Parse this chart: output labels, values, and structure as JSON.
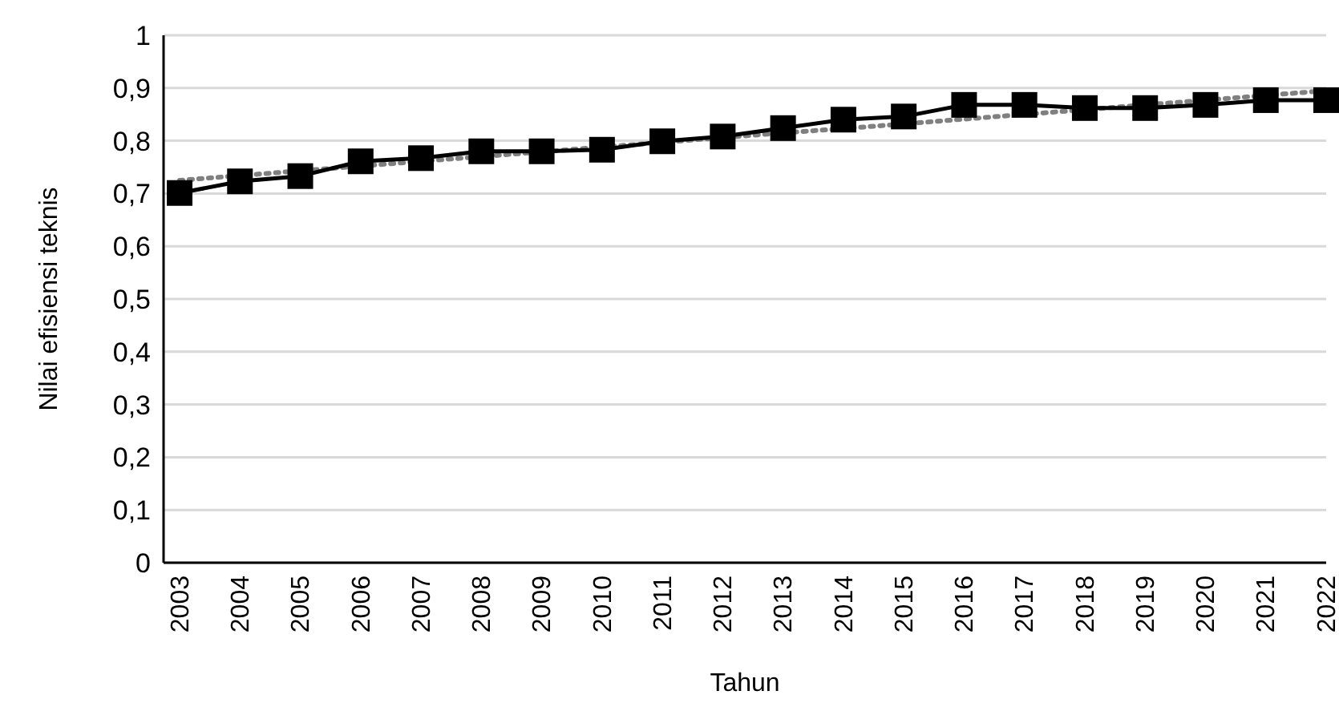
{
  "chart_data": {
    "type": "line",
    "xlabel": "Tahun",
    "ylabel": "Nilai efisiensi teknis",
    "categories": [
      "2003",
      "2004",
      "2005",
      "2006",
      "2007",
      "2008",
      "2009",
      "2010",
      "2011",
      "2012",
      "2013",
      "2014",
      "2015",
      "2016",
      "2017",
      "2018",
      "2019",
      "2020",
      "2021",
      "2022"
    ],
    "series": [
      {
        "color": "#000000",
        "marker": "square",
        "line_style": "solid",
        "values": [
          0.701,
          0.723,
          0.733,
          0.761,
          0.767,
          0.78,
          0.78,
          0.783,
          0.799,
          0.808,
          0.824,
          0.84,
          0.846,
          0.868,
          0.868,
          0.862,
          0.862,
          0.868,
          0.877,
          0.877
        ]
      },
      {
        "type": "line",
        "color": "#808080",
        "marker": "none",
        "line_style": "dotted",
        "values": [
          0.725,
          0.734,
          0.743,
          0.752,
          0.761,
          0.77,
          0.779,
          0.788,
          0.797,
          0.806,
          0.815,
          0.823,
          0.832,
          0.841,
          0.85,
          0.859,
          0.868,
          0.877,
          0.886,
          0.895
        ]
      }
    ],
    "ylim": [
      0,
      1
    ],
    "yticks": [
      0,
      {
        "value": 0.1,
        "label": "0,1"
      },
      {
        "value": 0.2,
        "label": "0,2"
      },
      {
        "value": 0.3,
        "label": "0,3"
      },
      {
        "value": 0.4,
        "label": "0,4"
      },
      {
        "value": 0.5,
        "label": "0,5"
      },
      {
        "value": 0.6,
        "label": "0,6"
      },
      {
        "value": 0.7,
        "label": "0,7"
      },
      {
        "value": 0.8,
        "label": "0,8"
      },
      {
        "value": 0.9,
        "label": "0,9"
      },
      1
    ],
    "grid": "y",
    "legend": false
  }
}
